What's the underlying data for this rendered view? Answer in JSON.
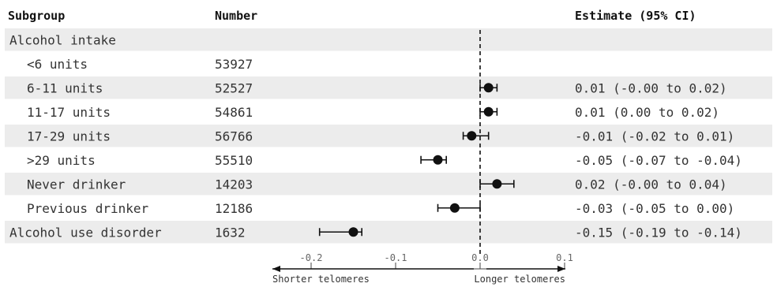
{
  "chart_data": {
    "type": "forest",
    "headers": {
      "subgroup": "Subgroup",
      "number": "Number",
      "estimate": "Estimate (95% CI)"
    },
    "rows": [
      {
        "subgroup": "Alcohol intake",
        "number": "",
        "estimate_text": "",
        "kind": "group"
      },
      {
        "subgroup": "<6 units",
        "number": "53927",
        "estimate_text": "",
        "kind": "item",
        "est": null,
        "lo": null,
        "hi": null
      },
      {
        "subgroup": "6-11 units",
        "number": "52527",
        "estimate_text": "0.01 (-0.00 to 0.02)",
        "kind": "item",
        "est": 0.01,
        "lo": 0.0,
        "hi": 0.02
      },
      {
        "subgroup": "11-17 units",
        "number": "54861",
        "estimate_text": "0.01 (0.00 to 0.02)",
        "kind": "item",
        "est": 0.01,
        "lo": 0.0,
        "hi": 0.02
      },
      {
        "subgroup": "17-29 units",
        "number": "56766",
        "estimate_text": "-0.01 (-0.02 to 0.01)",
        "kind": "item",
        "est": -0.01,
        "lo": -0.02,
        "hi": 0.01
      },
      {
        "subgroup": ">29 units",
        "number": "55510",
        "estimate_text": "-0.05 (-0.07 to -0.04)",
        "kind": "item",
        "est": -0.05,
        "lo": -0.07,
        "hi": -0.04
      },
      {
        "subgroup": "Never drinker",
        "number": "14203",
        "estimate_text": "0.02 (-0.00 to 0.04)",
        "kind": "item",
        "est": 0.02,
        "lo": 0.0,
        "hi": 0.04
      },
      {
        "subgroup": "Previous drinker",
        "number": "12186",
        "estimate_text": "-0.03 (-0.05 to 0.00)",
        "kind": "item",
        "est": -0.03,
        "lo": -0.05,
        "hi": 0.0
      },
      {
        "subgroup": "Alcohol use disorder",
        "number": "1632",
        "estimate_text": "-0.15 (-0.19 to -0.14)",
        "kind": "group",
        "est": -0.15,
        "lo": -0.19,
        "hi": -0.14
      }
    ],
    "x_axis": {
      "range": [
        -0.25,
        0.1
      ],
      "ticks": [
        -0.2,
        -0.1,
        0.0,
        0.1
      ],
      "tick_labels": [
        "-0.2",
        "-0.1",
        "0.0",
        "0.1"
      ],
      "reference_line": 0.0
    },
    "direction_labels": {
      "left": "Shorter telomeres",
      "right": "Longer telomeres"
    },
    "colors": {
      "row_band": "#ececec",
      "marker": "#111111"
    }
  }
}
